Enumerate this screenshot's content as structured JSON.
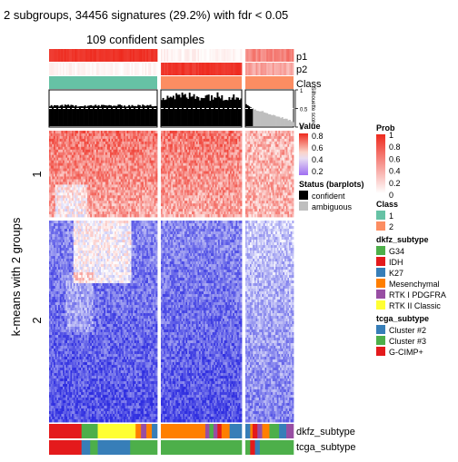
{
  "chart_data": {
    "type": "heatmap",
    "title": "2 subgroups, 34456 signatures (29.2%) with fdr < 0.05",
    "subtitle": "109 confident samples",
    "row_title": "k-means with 2 groups",
    "row_groups": [
      "1",
      "2"
    ],
    "column_groups": {
      "sizes": [
        71,
        55,
        32
      ]
    },
    "top_tracks": [
      "p1",
      "p2",
      "Class"
    ],
    "silhouette": {
      "label": "Silhouette score",
      "ticks": [
        "1",
        "0.5",
        "0"
      ],
      "cutoff": 0.5
    },
    "bottom_tracks": [
      "dkfz_subtype",
      "tcga_subtype"
    ],
    "colors": {
      "high": "#ee2a1e",
      "mid": "#ffffff",
      "low": "#2f2ee0",
      "class_1": "#66c2a5",
      "class_2": "#fc8d62",
      "confident": "#000000",
      "ambiguous": "#bebebe"
    },
    "legends": {
      "value": {
        "title": "Value",
        "ticks": [
          "0.8",
          "0.6",
          "0.4",
          "0.2"
        ]
      },
      "prob": {
        "title": "Prob",
        "ticks": [
          "1",
          "0.8",
          "0.6",
          "0.4",
          "0.2",
          "0"
        ]
      },
      "status": {
        "title": "Status (barplots)",
        "items": [
          {
            "label": "confident",
            "color": "#000000"
          },
          {
            "label": "ambiguous",
            "color": "#bebebe"
          }
        ]
      },
      "class": {
        "title": "Class",
        "items": [
          {
            "label": "1",
            "color": "#66c2a5"
          },
          {
            "label": "2",
            "color": "#fc8d62"
          }
        ]
      },
      "dkfz_subtype": {
        "title": "dkfz_subtype",
        "items": [
          {
            "label": "G34",
            "color": "#4daf4a"
          },
          {
            "label": "IDH",
            "color": "#e41a1c"
          },
          {
            "label": "K27",
            "color": "#377eb8"
          },
          {
            "label": "Mesenchymal",
            "color": "#ff7f00"
          },
          {
            "label": "RTK I PDGFRA",
            "color": "#984ea3"
          },
          {
            "label": "RTK II Classic",
            "color": "#ffff33"
          }
        ]
      },
      "tcga_subtype": {
        "title": "tcga_subtype",
        "items": [
          {
            "label": "Cluster #2",
            "color": "#377eb8"
          },
          {
            "label": "Cluster #3",
            "color": "#4daf4a"
          },
          {
            "label": "G-CIMP+",
            "color": "#e41a1c"
          }
        ]
      }
    }
  }
}
